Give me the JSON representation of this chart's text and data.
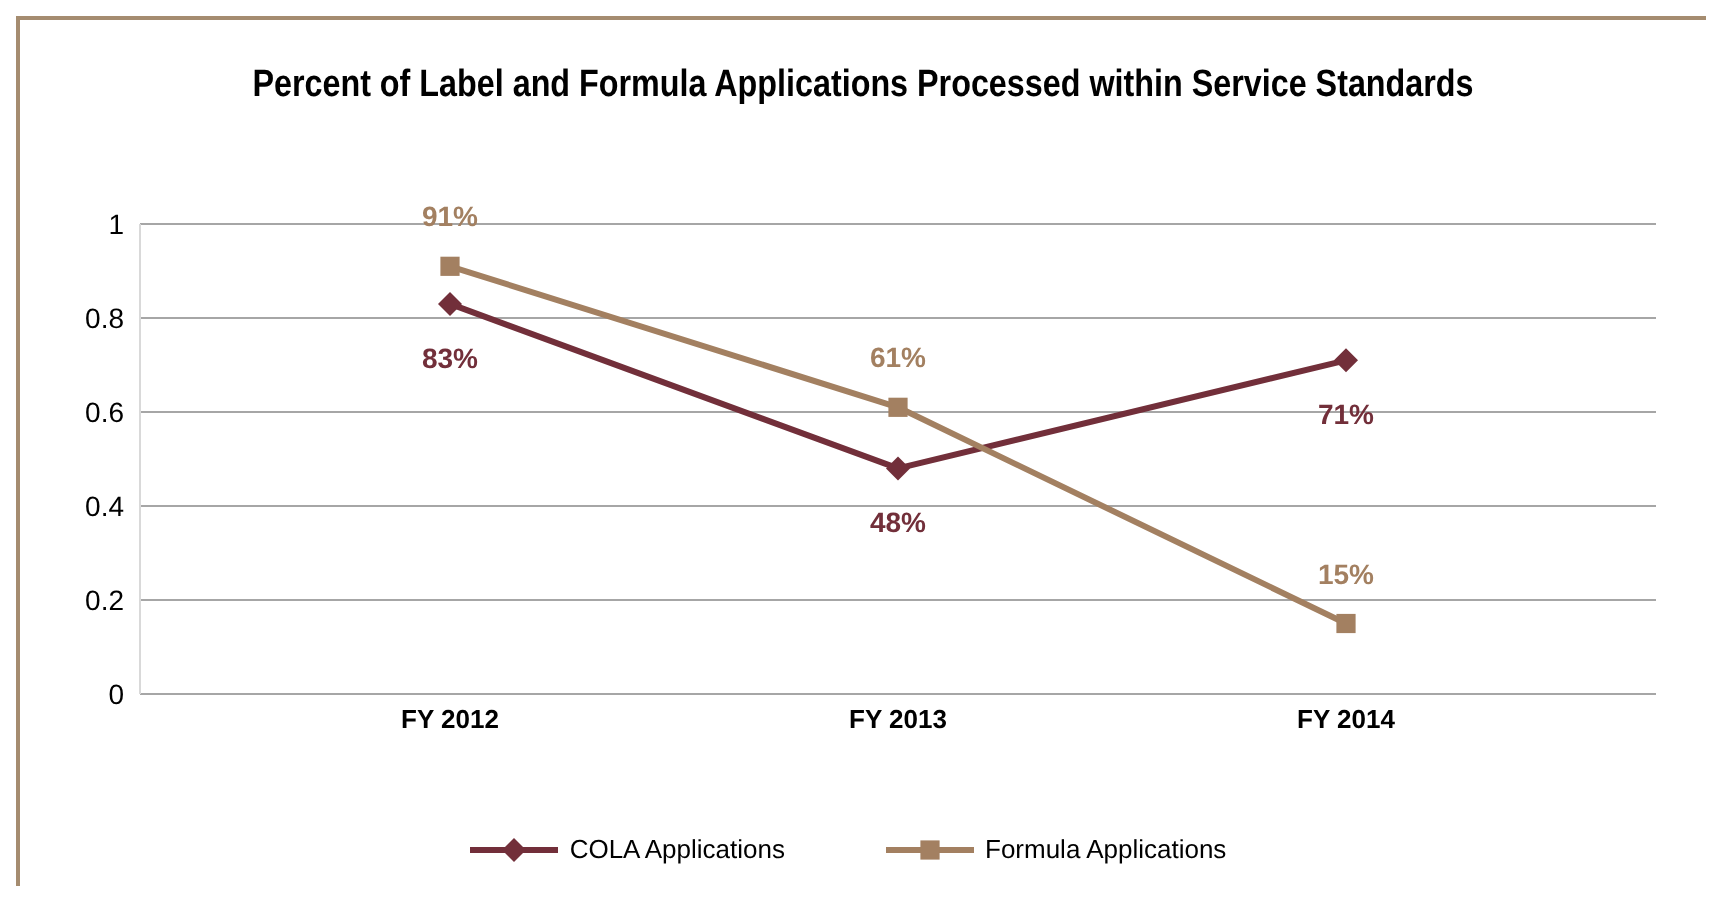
{
  "chart_data": {
    "type": "line",
    "title": "Percent of Label and Formula Applications Processed within Service Standards",
    "categories": [
      "FY 2012",
      "FY 2013",
      "FY 2014"
    ],
    "series": [
      {
        "name": "COLA Applications",
        "color": "#722f3a",
        "marker": "diamond",
        "values": [
          0.83,
          0.48,
          0.71
        ],
        "value_labels": [
          "83%",
          "48%",
          "71%"
        ]
      },
      {
        "name": "Formula Applications",
        "color": "#a38061",
        "marker": "square",
        "values": [
          0.91,
          0.61,
          0.15
        ],
        "value_labels": [
          "91%",
          "61%",
          "15%"
        ]
      }
    ],
    "ylim": [
      0,
      1
    ],
    "yticks": [
      0,
      0.2,
      0.4,
      0.6,
      0.8,
      1
    ],
    "grid": "y",
    "legend": "bottom"
  }
}
